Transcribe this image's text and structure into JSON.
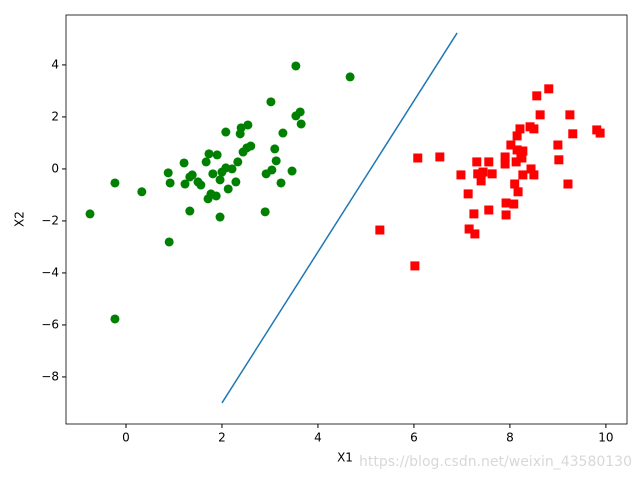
{
  "chart_data": {
    "type": "scatter",
    "xlabel": "X1",
    "ylabel": "X2",
    "xlim": [
      -1.25,
      10.44
    ],
    "ylim": [
      -9.81,
      5.92
    ],
    "xticks": [
      0,
      2,
      4,
      6,
      8,
      10
    ],
    "yticks": [
      {
        "value": -8,
        "label": "−8"
      },
      {
        "value": -6,
        "label": "−6"
      },
      {
        "value": -4,
        "label": "−4"
      },
      {
        "value": -2,
        "label": "−2"
      },
      0,
      2,
      4
    ],
    "watermark": "https://blog.csdn.net/weixin_43580130",
    "series": [
      {
        "color": "#008000",
        "marker": "circle",
        "x": [
          -0.75,
          -0.23,
          -0.23,
          0.33,
          0.88,
          0.92,
          0.9,
          1.21,
          1.23,
          1.33,
          1.38,
          1.33,
          1.5,
          1.56,
          1.67,
          1.73,
          1.71,
          1.77,
          1.81,
          1.9,
          1.88,
          1.96,
          1.96,
          2.0,
          2.08,
          2.08,
          2.13,
          2.21,
          2.29,
          2.33,
          2.38,
          2.4,
          2.44,
          2.52,
          2.54,
          2.6,
          2.9,
          2.92,
          3.02,
          3.04,
          3.1,
          3.13,
          3.23,
          3.27,
          3.46,
          3.54,
          3.54,
          3.63,
          3.65,
          4.67
        ],
        "y": [
          -1.73,
          -0.54,
          -5.77,
          -0.88,
          -0.15,
          -0.54,
          -2.81,
          0.23,
          -0.58,
          -0.31,
          -0.23,
          -1.62,
          -0.5,
          -0.62,
          0.27,
          0.58,
          -1.15,
          -0.96,
          -0.19,
          0.54,
          -1.04,
          -0.42,
          -1.85,
          -0.12,
          1.42,
          0.04,
          -0.77,
          0,
          -0.5,
          0.27,
          1.35,
          1.58,
          0.65,
          0.81,
          1.69,
          0.88,
          -1.65,
          -0.19,
          2.58,
          -0.04,
          0.77,
          0.31,
          -0.54,
          1.38,
          -0.08,
          3.96,
          2.04,
          2.19,
          1.73,
          3.54
        ]
      },
      {
        "color": "#ff0000",
        "marker": "square",
        "x": [
          5.29,
          6.02,
          6.08,
          6.54,
          6.98,
          7.13,
          7.15,
          7.25,
          7.27,
          7.31,
          7.33,
          7.4,
          7.44,
          7.56,
          7.56,
          7.63,
          7.9,
          7.9,
          7.92,
          7.92,
          8.02,
          8.08,
          8.1,
          8.13,
          8.15,
          8.15,
          8.17,
          8.21,
          8.23,
          8.25,
          8.27,
          8.27,
          8.42,
          8.44,
          8.5,
          8.5,
          8.56,
          8.63,
          8.81,
          9.0,
          9.02,
          9.21,
          9.25,
          9.31,
          9.81,
          9.88
        ],
        "y": [
          -2.35,
          -3.73,
          0.42,
          0.46,
          -0.23,
          -0.96,
          -2.31,
          -1.73,
          -2.5,
          0.27,
          -0.19,
          -0.46,
          -0.12,
          0.27,
          -1.58,
          -0.19,
          0.46,
          0.19,
          -1.31,
          -1.77,
          0.92,
          -1.35,
          -0.58,
          0.27,
          1.27,
          0.73,
          -0.88,
          1.54,
          0.54,
          0.42,
          0.69,
          -0.23,
          1.62,
          0,
          -0.23,
          1.54,
          2.81,
          2.08,
          3.08,
          0.92,
          0.35,
          -0.58,
          2.08,
          1.35,
          1.5,
          1.38
        ]
      },
      {
        "type": "line",
        "color": "#1f77b4",
        "x": [
          2.0,
          6.9
        ],
        "y": [
          -9.0,
          5.23
        ]
      }
    ]
  }
}
